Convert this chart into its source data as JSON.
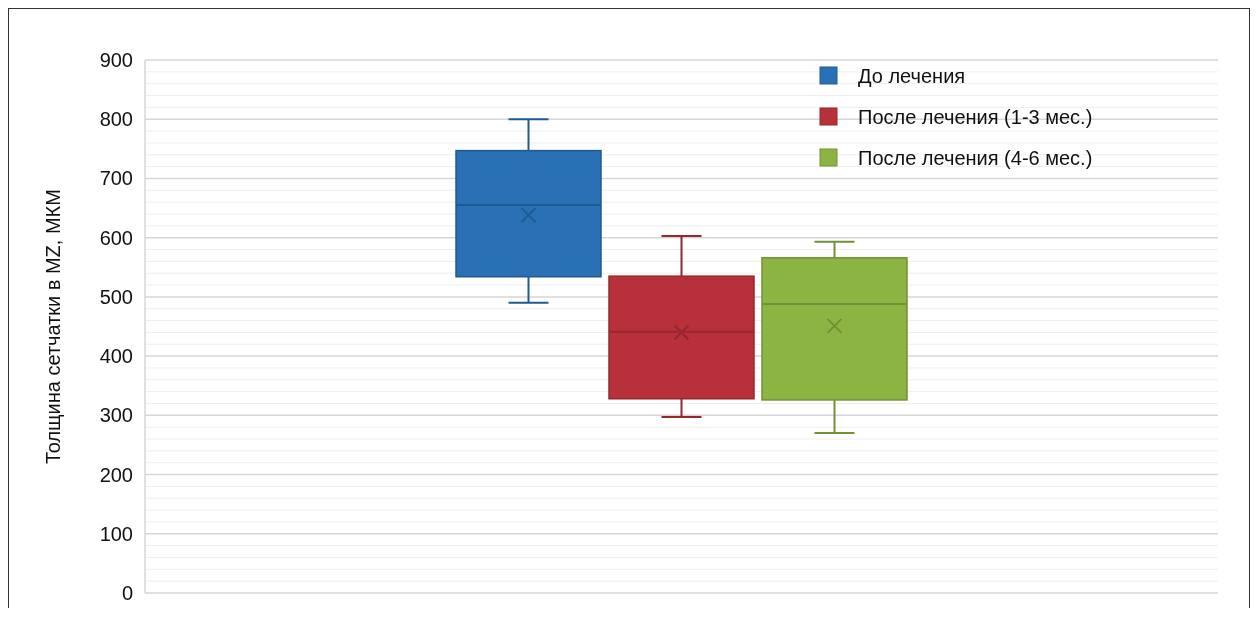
{
  "chart_data": {
    "type": "box",
    "ylabel": "Толщина сетчатки в MZ, МКМ",
    "categories": [
      null
    ],
    "ylim": [
      0,
      900
    ],
    "yticks": [
      0,
      {
        "value": 20,
        "label": null
      },
      {
        "value": 40,
        "label": null
      },
      {
        "value": 60,
        "label": null
      },
      {
        "value": 80,
        "label": null
      },
      100,
      {
        "value": 120,
        "label": null
      },
      {
        "value": 140,
        "label": null
      },
      {
        "value": 160,
        "label": null
      },
      {
        "value": 180,
        "label": null
      },
      200,
      {
        "value": 220,
        "label": null
      },
      {
        "value": 240,
        "label": null
      },
      {
        "value": 260,
        "label": null
      },
      {
        "value": 280,
        "label": null
      },
      300,
      {
        "value": 320,
        "label": null
      },
      {
        "value": 340,
        "label": null
      },
      {
        "value": 360,
        "label": null
      },
      {
        "value": 380,
        "label": null
      },
      400,
      {
        "value": 420,
        "label": null
      },
      {
        "value": 440,
        "label": null
      },
      {
        "value": 460,
        "label": null
      },
      {
        "value": 480,
        "label": null
      },
      500,
      {
        "value": 520,
        "label": null
      },
      {
        "value": 540,
        "label": null
      },
      {
        "value": 560,
        "label": null
      },
      {
        "value": 580,
        "label": null
      },
      600,
      {
        "value": 620,
        "label": null
      },
      {
        "value": 640,
        "label": null
      },
      {
        "value": 660,
        "label": null
      },
      {
        "value": 680,
        "label": null
      },
      700,
      {
        "value": 720,
        "label": null
      },
      {
        "value": 740,
        "label": null
      },
      {
        "value": 760,
        "label": null
      },
      {
        "value": 780,
        "label": null
      },
      800,
      {
        "value": 820,
        "label": null
      },
      {
        "value": 840,
        "label": null
      },
      {
        "value": 860,
        "label": null
      },
      {
        "value": 880,
        "label": null
      },
      900
    ],
    "grid": "y",
    "legend": "top right",
    "series": [
      {
        "name": "До лечения",
        "color": "#2970b4",
        "boxes": [
          {
            "low": 490,
            "q1": 534,
            "median": 655,
            "q3": 747,
            "high": 800,
            "mean": 638
          }
        ]
      },
      {
        "name": "После лечения (1-3 мес.)",
        "color": "#b8303a",
        "boxes": [
          {
            "low": 297,
            "q1": 328,
            "median": 441,
            "q3": 535,
            "high": 603,
            "mean": 440
          }
        ]
      },
      {
        "name": "После лечения (4-6 мес.)",
        "color": "#8cb443",
        "boxes": [
          {
            "low": 270,
            "q1": 326,
            "median": 488,
            "q3": 566,
            "high": 593,
            "mean": 451
          }
        ]
      }
    ]
  }
}
